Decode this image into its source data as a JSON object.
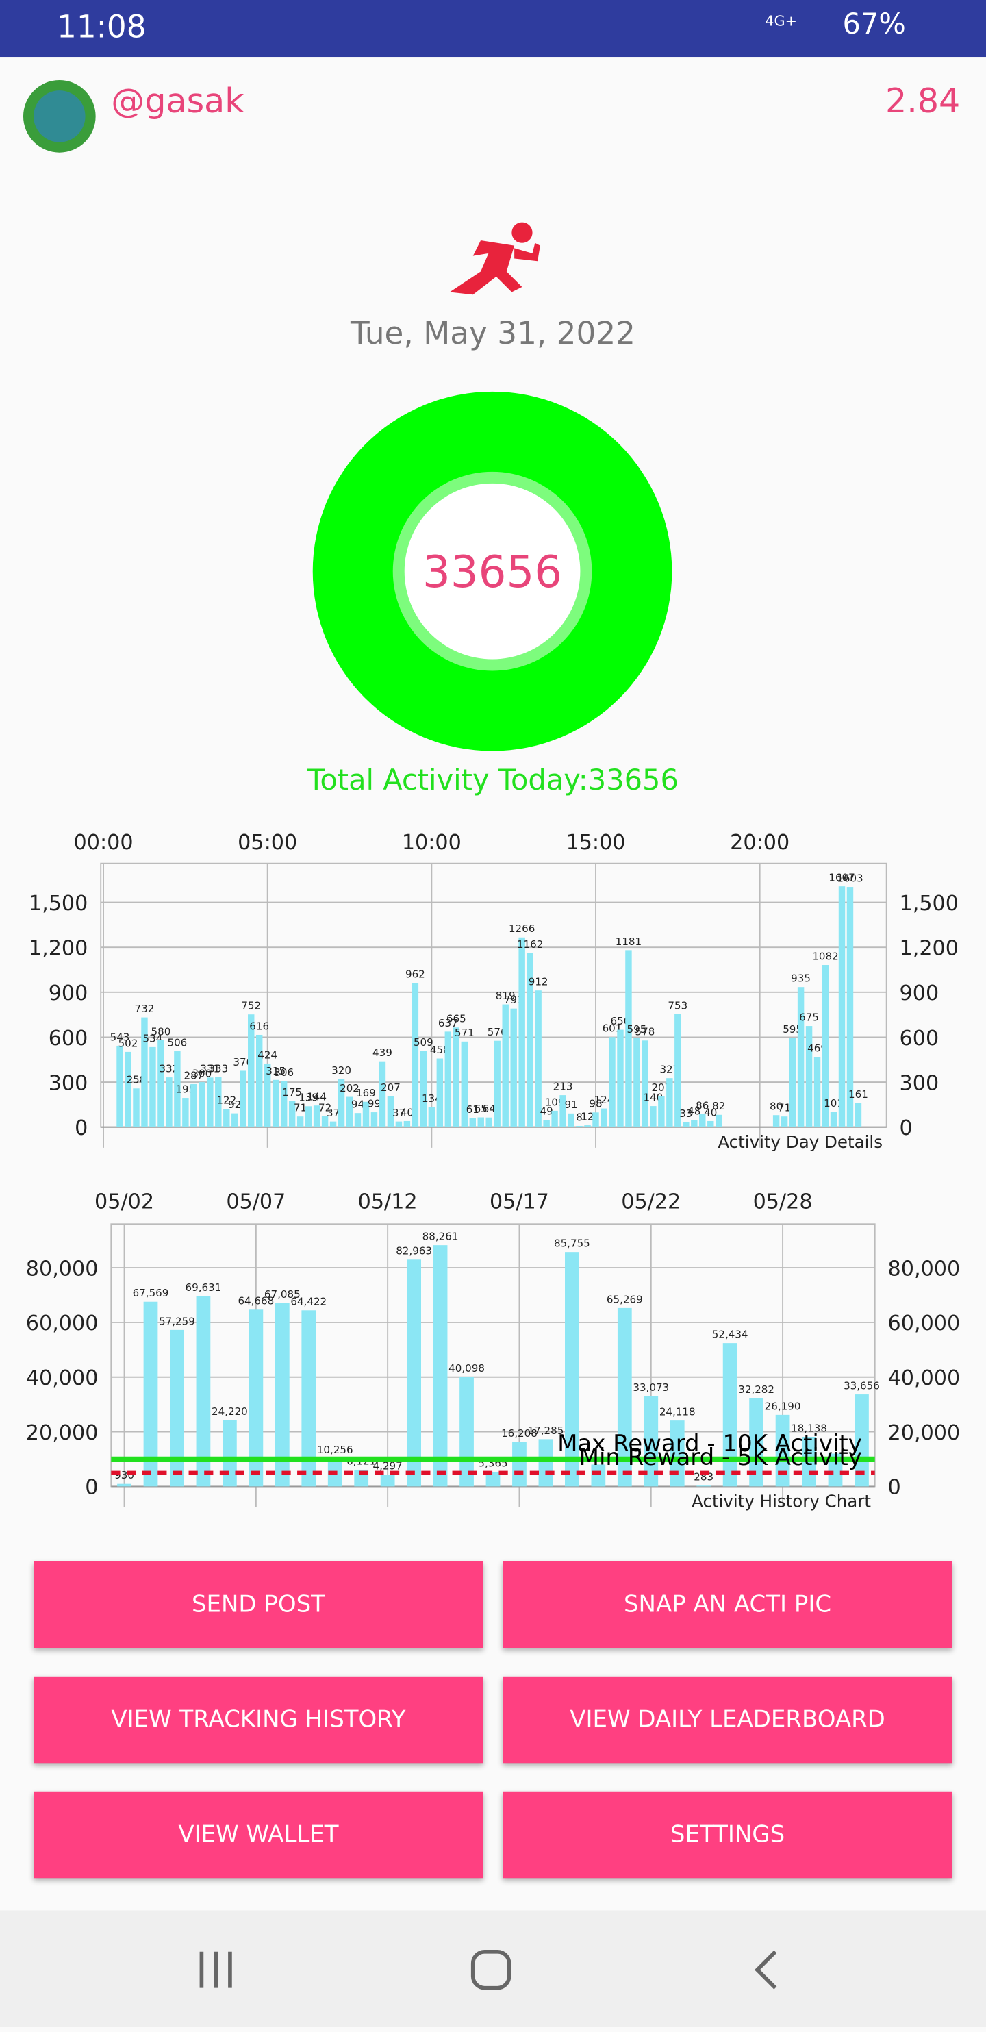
{
  "status_bar": {
    "time": "11:08",
    "network": "4G+",
    "battery": "67%"
  },
  "header": {
    "username": "@gasak",
    "balance": "2.84"
  },
  "date": "Tue, May 31, 2022",
  "ring": {
    "value": 33656
  },
  "total_label": "Total Activity Today:33656",
  "chart_data": [
    {
      "type": "bar",
      "note": "Activity Day Details",
      "color": "#8be6f4",
      "grid": true,
      "x": [
        0.5,
        0.75,
        1,
        1.25,
        1.5,
        1.75,
        2,
        2.25,
        2.5,
        2.75,
        3,
        3.25,
        3.5,
        3.75,
        4,
        4.25,
        4.5,
        4.75,
        5,
        5.25,
        5.5,
        5.75,
        6,
        6.25,
        6.5,
        6.75,
        7,
        7.25,
        7.5,
        7.75,
        8,
        8.25,
        8.5,
        8.75,
        9,
        9.25,
        9.5,
        9.75,
        10,
        10.25,
        10.5,
        10.75,
        11,
        11.25,
        11.5,
        11.75,
        12,
        12.25,
        12.5,
        12.75,
        13,
        13.25,
        13.5,
        13.75,
        14,
        14.25,
        14.5,
        14.75,
        15,
        15.25,
        15.5,
        15.75,
        16,
        16.25,
        16.5,
        16.75,
        17,
        17.25,
        17.5,
        17.75,
        18,
        18.25,
        18.5,
        18.75,
        20.5,
        20.75,
        21,
        21.25,
        21.5,
        21.75,
        22,
        22.25,
        22.5,
        22.75,
        23
      ],
      "values": [
        543,
        502,
        258,
        732,
        534,
        580,
        332,
        506,
        195,
        287,
        300,
        331,
        333,
        122,
        92,
        376,
        752,
        616,
        424,
        315,
        306,
        175,
        71,
        139,
        144,
        72,
        37,
        320,
        202,
        94,
        169,
        99,
        439,
        207,
        37,
        40,
        962,
        509,
        134,
        458,
        637,
        665,
        571,
        61,
        65,
        64,
        576,
        819,
        791,
        1266,
        1162,
        912,
        49,
        109,
        213,
        91,
        8,
        12,
        98,
        124,
        601,
        650,
        1181,
        595,
        578,
        140,
        207,
        327,
        753,
        33,
        48,
        86,
        40,
        82,
        80,
        71,
        595,
        935,
        675,
        469,
        1082,
        101,
        1607,
        1603,
        161
      ],
      "xlim": [
        -0.08,
        23.86
      ],
      "xticks": [
        {
          "value": 0,
          "label": "00:00"
        },
        {
          "value": 5,
          "label": "05:00"
        },
        {
          "value": 10,
          "label": "10:00"
        },
        {
          "value": 15,
          "label": "15:00"
        },
        {
          "value": 20,
          "label": "20:00"
        }
      ],
      "ylim": [
        0,
        1760
      ],
      "yticks": [
        0,
        300,
        600,
        900,
        {
          "value": 1200,
          "label": "1,200"
        },
        {
          "value": 1500,
          "label": "1,500"
        }
      ]
    },
    {
      "type": "bar",
      "note": "Activity History Chart",
      "color": "#8be6f4",
      "grid": true,
      "categories": [
        "05/02",
        null,
        null,
        null,
        null,
        "05/07",
        null,
        null,
        null,
        null,
        "05/12",
        null,
        null,
        null,
        null,
        "05/17",
        null,
        null,
        null,
        null,
        "05/22",
        null,
        null,
        null,
        null,
        "05/28",
        null,
        null,
        null
      ],
      "values": [
        930,
        67569,
        57259,
        69631,
        24220,
        64668,
        67085,
        64422,
        10256,
        6121,
        4297,
        82963,
        88261,
        40098,
        5365,
        16208,
        17285,
        85755,
        8000,
        65269,
        33073,
        24118,
        283,
        52434,
        32282,
        26190,
        18138,
        12000,
        33656
      ],
      "value_labels": [
        "930",
        "67,569",
        "57,259",
        "69,631",
        "24,220",
        "64,668",
        "67,085",
        "64,422",
        "10,256",
        "6,121",
        "4,297",
        "82,963",
        "88,261",
        "40,098",
        "5,365",
        "16,208",
        "17,285",
        "85,755",
        null,
        "65,269",
        "33,073",
        "24,118",
        "283",
        "52,434",
        "32,282",
        "26,190",
        "18,138",
        null,
        "33,656"
      ],
      "ylim": [
        0,
        96000
      ],
      "yticks": [
        0,
        {
          "value": 20000,
          "label": "20,000"
        },
        {
          "value": 40000,
          "label": "40,000"
        },
        {
          "value": 60000,
          "label": "60,000"
        },
        {
          "value": 80000,
          "label": "80,000"
        }
      ],
      "reference_lines": [
        {
          "value": 10000,
          "label": "Max Reward - 10K Activity",
          "color": "#22e01e",
          "style": "solid"
        },
        {
          "value": 5000,
          "label": "Min Reward - 5K Activity",
          "color": "#e0102a",
          "style": "dashed"
        }
      ]
    }
  ],
  "buttons": [
    "SEND POST",
    "SNAP AN ACTI PIC",
    "VIEW TRACKING HISTORY",
    "VIEW DAILY LEADERBOARD",
    "VIEW WALLET",
    "SETTINGS"
  ]
}
